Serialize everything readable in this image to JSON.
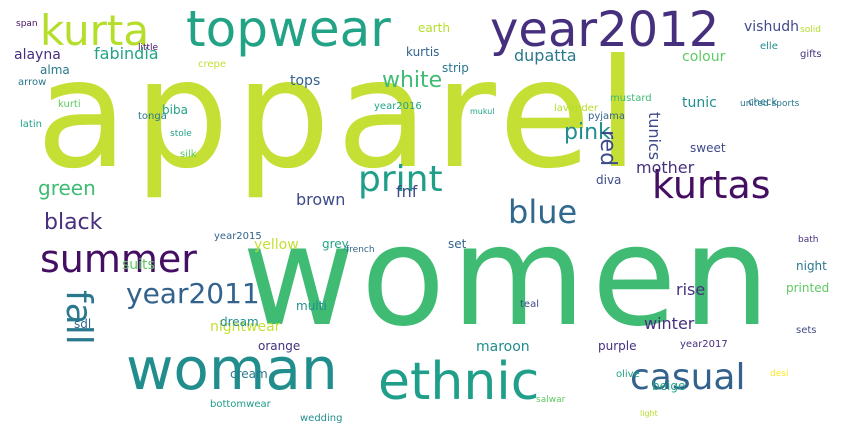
{
  "cloud": {
    "words": [
      {
        "name": "word-topwear",
        "text": "topwear"
      },
      {
        "name": "word-apparel",
        "text": "apparel"
      },
      {
        "name": "word-women",
        "text": "women"
      },
      {
        "name": "word-kurta",
        "text": "kurta"
      },
      {
        "name": "word-year2012",
        "text": "year2012"
      },
      {
        "name": "word-woman",
        "text": "woman"
      },
      {
        "name": "word-ethnic",
        "text": "ethnic"
      },
      {
        "name": "word-summer",
        "text": "summer"
      },
      {
        "name": "word-print",
        "text": "print"
      },
      {
        "name": "word-kurtas",
        "text": "kurtas"
      },
      {
        "name": "word-blue",
        "text": "blue"
      },
      {
        "name": "word-casual",
        "text": "casual"
      },
      {
        "name": "word-fall",
        "text": "fall"
      },
      {
        "name": "word-year2011",
        "text": "year2011"
      },
      {
        "name": "word-white",
        "text": "white"
      },
      {
        "name": "word-pink",
        "text": "pink"
      },
      {
        "name": "word-black",
        "text": "black"
      },
      {
        "name": "word-green",
        "text": "green"
      },
      {
        "name": "word-red",
        "text": "red"
      },
      {
        "name": "word-tunics",
        "text": "tunics"
      },
      {
        "name": "word-fabindia",
        "text": "fabindia"
      },
      {
        "name": "word-dupatta",
        "text": "dupatta"
      },
      {
        "name": "word-tops",
        "text": "tops"
      },
      {
        "name": "word-nightwear",
        "text": "nightwear"
      },
      {
        "name": "word-brown",
        "text": "brown"
      },
      {
        "name": "word-yellow",
        "text": "yellow"
      },
      {
        "name": "word-fnf",
        "text": "fnf"
      },
      {
        "name": "word-winter",
        "text": "winter"
      },
      {
        "name": "word-maroon",
        "text": "maroon"
      },
      {
        "name": "word-vishudh",
        "text": "vishudh"
      },
      {
        "name": "word-colour",
        "text": "colour"
      },
      {
        "name": "word-tunic",
        "text": "tunic"
      },
      {
        "name": "word-biba",
        "text": "biba"
      },
      {
        "name": "word-mother",
        "text": "mother"
      },
      {
        "name": "word-suits",
        "text": "suits"
      },
      {
        "name": "word-rise",
        "text": "rise"
      },
      {
        "name": "word-kurtis",
        "text": "kurtis"
      },
      {
        "name": "word-earth",
        "text": "earth"
      },
      {
        "name": "word-alayna",
        "text": "alayna"
      },
      {
        "name": "word-alma",
        "text": "alma"
      },
      {
        "name": "word-cream",
        "text": "cream"
      },
      {
        "name": "word-orange",
        "text": "orange"
      },
      {
        "name": "word-beige",
        "text": "beige"
      },
      {
        "name": "word-sdl",
        "text": "sdl"
      },
      {
        "name": "word-bottomwear",
        "text": "bottomwear"
      },
      {
        "name": "word-night",
        "text": "night"
      },
      {
        "name": "word-printed",
        "text": "printed"
      },
      {
        "name": "word-dream",
        "text": "dream"
      },
      {
        "name": "word-purple",
        "text": "purple"
      },
      {
        "name": "word-set",
        "text": "set"
      },
      {
        "name": "word-grey",
        "text": "grey"
      },
      {
        "name": "word-multi",
        "text": "multi"
      },
      {
        "name": "word-sets",
        "text": "sets"
      },
      {
        "name": "word-silk",
        "text": "silk"
      },
      {
        "name": "word-tonga",
        "text": "tonga"
      },
      {
        "name": "word-sweet",
        "text": "sweet"
      },
      {
        "name": "word-span",
        "text": "span"
      },
      {
        "name": "word-elle",
        "text": "elle"
      },
      {
        "name": "word-gifts",
        "text": "gifts"
      },
      {
        "name": "word-diva",
        "text": "diva"
      },
      {
        "name": "word-year2015",
        "text": "year2015"
      },
      {
        "name": "word-little",
        "text": "little"
      },
      {
        "name": "word-crepe",
        "text": "crepe"
      },
      {
        "name": "word-arrow",
        "text": "arrow"
      },
      {
        "name": "word-latin",
        "text": "latin"
      },
      {
        "name": "word-kurti",
        "text": "kurti"
      },
      {
        "name": "word-strip",
        "text": "strip"
      },
      {
        "name": "word-year2016",
        "text": "year2016"
      },
      {
        "name": "word-lavender",
        "text": "lavender"
      },
      {
        "name": "word-pyjama",
        "text": "pyjama"
      },
      {
        "name": "word-mustard",
        "text": "mustard"
      },
      {
        "name": "word-check",
        "text": "check"
      },
      {
        "name": "word-year2017",
        "text": "year2017"
      },
      {
        "name": "word-mukul",
        "text": "mukul"
      },
      {
        "name": "word-salwar",
        "text": "salwar"
      },
      {
        "name": "word-teal",
        "text": "teal"
      },
      {
        "name": "word-olive",
        "text": "olive"
      },
      {
        "name": "word-french",
        "text": "french"
      },
      {
        "name": "word-stole",
        "text": "stole"
      },
      {
        "name": "word-solid",
        "text": "solid"
      },
      {
        "name": "word-bath",
        "text": "bath"
      },
      {
        "name": "word-desi",
        "text": "desi"
      },
      {
        "name": "word-united-sports",
        "text": "united sports"
      },
      {
        "name": "word-light",
        "text": "light"
      },
      {
        "name": "word-wedding",
        "text": "wedding"
      }
    ]
  }
}
